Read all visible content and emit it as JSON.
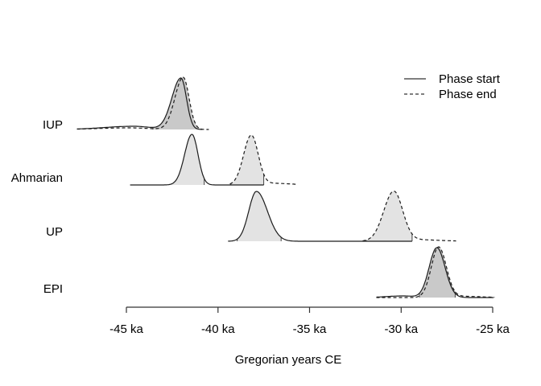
{
  "chart_data": {
    "type": "area",
    "title": "",
    "xlabel": "Gregorian years CE",
    "x_unit": "ka",
    "x_range": [
      -45,
      -25
    ],
    "grid": false,
    "x_ticks": [
      {
        "value": -45,
        "label": "-45 ka"
      },
      {
        "value": -40,
        "label": "-40 ka"
      },
      {
        "value": -35,
        "label": "-35 ka"
      },
      {
        "value": -30,
        "label": "-30 ka"
      },
      {
        "value": -25,
        "label": "-25 ka"
      }
    ],
    "categories": [
      "IUP",
      "Ahmarian",
      "UP",
      "EPI"
    ],
    "legend": {
      "position": "top-right",
      "items": [
        {
          "label": "Phase start",
          "style": "solid"
        },
        {
          "label": "Phase end",
          "style": "dashed"
        }
      ]
    },
    "colors": {
      "line": "#1c1c1c",
      "fill_light": "#e3e3e3",
      "fill_dark": "#c9c9c9",
      "axis": "#333333",
      "edge": "#444444",
      "legend_line": "#555555"
    },
    "rows": [
      {
        "label": "IUP",
        "summary": {
          "start_peak_ka": -42.0,
          "end_peak_ka": -41.9,
          "hpd_ka": [
            -43.6,
            -40.9
          ]
        },
        "curves": [
          {
            "style": "solid",
            "domain": [
              -47.7,
              -40.85
            ],
            "components": [
              {
                "mu": -42.02,
                "sl": 0.5,
                "sr": 0.3,
                "h": 64
              },
              {
                "mu": -44.6,
                "sl": 1.6,
                "sr": 0.9,
                "h": 4
              }
            ]
          },
          {
            "style": "dashed",
            "domain": [
              -47.7,
              -40.5
            ],
            "components": [
              {
                "mu": -41.9,
                "sl": 0.45,
                "sr": 0.32,
                "h": 65
              },
              {
                "mu": -44.8,
                "sl": 1.7,
                "sr": 1.0,
                "h": 2
              }
            ]
          }
        ],
        "fills": [
          {
            "from": -43.55,
            "to": -40.95,
            "shade": "dark",
            "curves": [
              0,
              1
            ]
          }
        ]
      },
      {
        "label": "Ahmarian",
        "summary": {
          "start_peak_ka": -41.4,
          "end_peak_ka": -38.2
        },
        "curves": [
          {
            "style": "solid",
            "domain": [
              -44.8,
              -37.5
            ],
            "components": [
              {
                "mu": -41.42,
                "sl": 0.4,
                "sr": 0.33,
                "h": 63
              }
            ]
          },
          {
            "style": "dashed",
            "domain": [
              -39.35,
              -35.7
            ],
            "components": [
              {
                "mu": -38.18,
                "sl": 0.42,
                "sr": 0.38,
                "h": 62
              },
              {
                "mu": -36.9,
                "sl": 0.5,
                "sr": 0.9,
                "h": 2
              }
            ]
          }
        ],
        "fills": [
          {
            "from": -42.65,
            "to": -40.75,
            "shade": "light",
            "curves": [
              0
            ]
          },
          {
            "from": -39.3,
            "to": -37.5,
            "shade": "light",
            "curves": [
              1
            ]
          }
        ]
      },
      {
        "label": "UP",
        "summary": {
          "start_peak_ka": -37.9,
          "end_peak_ka": -30.4
        },
        "curves": [
          {
            "style": "solid",
            "domain": [
              -39.45,
              -29.4
            ],
            "components": [
              {
                "mu": -37.9,
                "sl": 0.42,
                "sr": 0.6,
                "h": 62
              }
            ]
          },
          {
            "style": "dashed",
            "domain": [
              -32.1,
              -27.0
            ],
            "components": [
              {
                "mu": -30.4,
                "sl": 0.55,
                "sr": 0.48,
                "h": 62
              },
              {
                "mu": -29.3,
                "sl": 0.6,
                "sr": 1.3,
                "h": 2
              }
            ]
          }
        ],
        "fills": [
          {
            "from": -38.95,
            "to": -36.55,
            "shade": "light",
            "curves": [
              0
            ]
          },
          {
            "from": -31.9,
            "to": -29.4,
            "shade": "light",
            "curves": [
              1
            ]
          }
        ]
      },
      {
        "label": "EPI",
        "summary": {
          "start_peak_ka": -28.0,
          "end_peak_ka": -27.9,
          "hpd_ka": [
            -29.0,
            -27.1
          ]
        },
        "curves": [
          {
            "style": "solid",
            "domain": [
              -31.35,
              -24.95
            ],
            "components": [
              {
                "mu": -28.05,
                "sl": 0.42,
                "sr": 0.45,
                "h": 62
              },
              {
                "mu": -29.9,
                "sl": 0.9,
                "sr": 0.6,
                "h": 2
              }
            ]
          },
          {
            "style": "dashed",
            "domain": [
              -31.35,
              -24.9
            ],
            "components": [
              {
                "mu": -27.95,
                "sl": 0.4,
                "sr": 0.42,
                "h": 63
              },
              {
                "mu": -26.6,
                "sl": 0.5,
                "sr": 1.0,
                "h": 1.5
              }
            ]
          }
        ],
        "fills": [
          {
            "from": -29.0,
            "to": -27.05,
            "shade": "dark",
            "curves": [
              0,
              1
            ]
          }
        ]
      }
    ]
  }
}
